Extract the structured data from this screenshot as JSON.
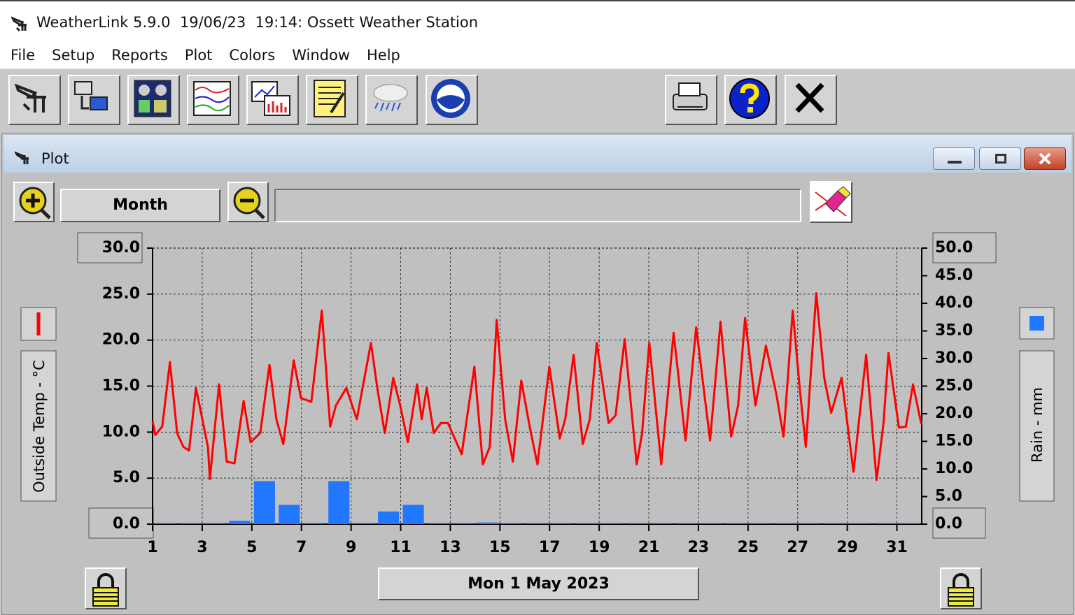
{
  "window": {
    "title": "WeatherLink 5.9.0  19/06/23  19:14: Ossett Weather Station",
    "menu": [
      "File",
      "Setup",
      "Reports",
      "Plot",
      "Colors",
      "Window",
      "Help"
    ]
  },
  "plot_window": {
    "title": "Plot",
    "zoom_label": "Month",
    "date_label": "Mon 1 May 2023"
  },
  "chart_data": {
    "type": "combo",
    "grid": true,
    "xlim": [
      1,
      32
    ],
    "xticks": [
      1,
      3,
      5,
      7,
      9,
      11,
      13,
      15,
      17,
      19,
      21,
      23,
      25,
      27,
      29,
      31
    ],
    "ylim": [
      0,
      30
    ],
    "yticks": [
      {
        "value": 0,
        "label": "0.0"
      },
      {
        "value": 5,
        "label": "5.0"
      },
      {
        "value": 10,
        "label": "10.0"
      },
      {
        "value": 15,
        "label": "15.0"
      },
      {
        "value": 20,
        "label": "20.0"
      },
      {
        "value": 25,
        "label": "25.0"
      },
      {
        "value": 30,
        "label": "30.0"
      }
    ],
    "y2lim": [
      0,
      50
    ],
    "y2ticks": [
      {
        "value": 0,
        "label": "0.0"
      },
      {
        "value": 5,
        "label": "5.0"
      },
      {
        "value": 10,
        "label": "10.0"
      },
      {
        "value": 15,
        "label": "15.0"
      },
      {
        "value": 20,
        "label": "20.0"
      },
      {
        "value": 25,
        "label": "25.0"
      },
      {
        "value": 30,
        "label": "30.0"
      },
      {
        "value": 35,
        "label": "35.0"
      },
      {
        "value": 40,
        "label": "40.0"
      },
      {
        "value": 45,
        "label": "45.0"
      },
      {
        "value": 50,
        "label": "50.0"
      }
    ],
    "series": [
      {
        "name": "Outside Temp - °C",
        "type": "line",
        "color": "#ff0000",
        "axis": "y",
        "x": [
          1.0,
          1.11,
          1.39,
          1.7,
          1.99,
          2.24,
          2.47,
          2.75,
          3.23,
          3.31,
          3.68,
          3.99,
          4.3,
          4.67,
          4.95,
          5.34,
          5.71,
          5.99,
          6.27,
          6.69,
          6.98,
          7.4,
          7.82,
          8.16,
          8.39,
          8.81,
          9.23,
          9.8,
          10.08,
          10.36,
          10.7,
          10.98,
          11.29,
          11.66,
          11.85,
          12.05,
          12.33,
          12.62,
          12.9,
          13.46,
          13.97,
          14.31,
          14.59,
          14.87,
          15.21,
          15.52,
          15.86,
          16.22,
          16.51,
          16.99,
          17.41,
          17.63,
          17.97,
          18.34,
          18.62,
          18.9,
          19.38,
          19.66,
          20.03,
          20.51,
          20.73,
          21.02,
          21.5,
          22.0,
          22.48,
          22.91,
          23.47,
          23.89,
          24.32,
          24.6,
          24.88,
          25.3,
          25.72,
          26.15,
          26.43,
          26.8,
          27.08,
          27.33,
          27.75,
          28.07,
          28.35,
          28.77,
          29.25,
          29.76,
          30.18,
          30.46,
          30.66,
          31.08,
          31.36,
          31.65,
          31.98
        ],
        "values": [
          11.2,
          9.7,
          10.6,
          17.6,
          9.9,
          8.4,
          8.0,
          14.8,
          8.4,
          4.9,
          15.2,
          6.8,
          6.6,
          13.4,
          8.9,
          9.9,
          17.3,
          11.4,
          8.7,
          17.8,
          13.7,
          13.3,
          23.2,
          10.6,
          12.9,
          14.8,
          11.4,
          19.7,
          14.4,
          9.9,
          15.9,
          12.9,
          8.9,
          15.2,
          11.4,
          14.8,
          9.9,
          11.0,
          11.0,
          7.6,
          17.1,
          6.5,
          8.4,
          22.2,
          11.4,
          6.8,
          15.6,
          10.3,
          6.5,
          17.1,
          9.3,
          11.4,
          18.4,
          8.7,
          11.4,
          19.7,
          11.0,
          11.8,
          20.1,
          6.5,
          9.9,
          19.7,
          6.5,
          20.8,
          9.1,
          21.4,
          9.1,
          22.0,
          9.5,
          12.9,
          22.4,
          12.9,
          19.4,
          14.0,
          9.5,
          23.2,
          14.8,
          8.4,
          25.1,
          15.9,
          12.1,
          15.9,
          5.7,
          18.4,
          4.8,
          11.0,
          18.6,
          10.5,
          10.6,
          15.2,
          10.9
        ]
      },
      {
        "name": "Rain - mm",
        "type": "bar",
        "color": "#2277ff",
        "axis": "y2",
        "x": [
          1,
          2,
          3,
          4,
          5,
          6,
          7,
          8,
          9,
          10,
          11,
          12,
          13,
          14,
          15,
          16,
          17,
          18,
          19,
          20,
          21,
          22,
          23,
          24,
          25,
          26,
          27,
          28,
          29,
          30,
          31
        ],
        "values": [
          0,
          0,
          0,
          0.6,
          7.8,
          3.5,
          0,
          7.8,
          0,
          2.3,
          3.5,
          0,
          0,
          0.3,
          0,
          0,
          0,
          0,
          0,
          0,
          0,
          0,
          0,
          0,
          0,
          0,
          0,
          0,
          0,
          0,
          0
        ]
      }
    ]
  }
}
